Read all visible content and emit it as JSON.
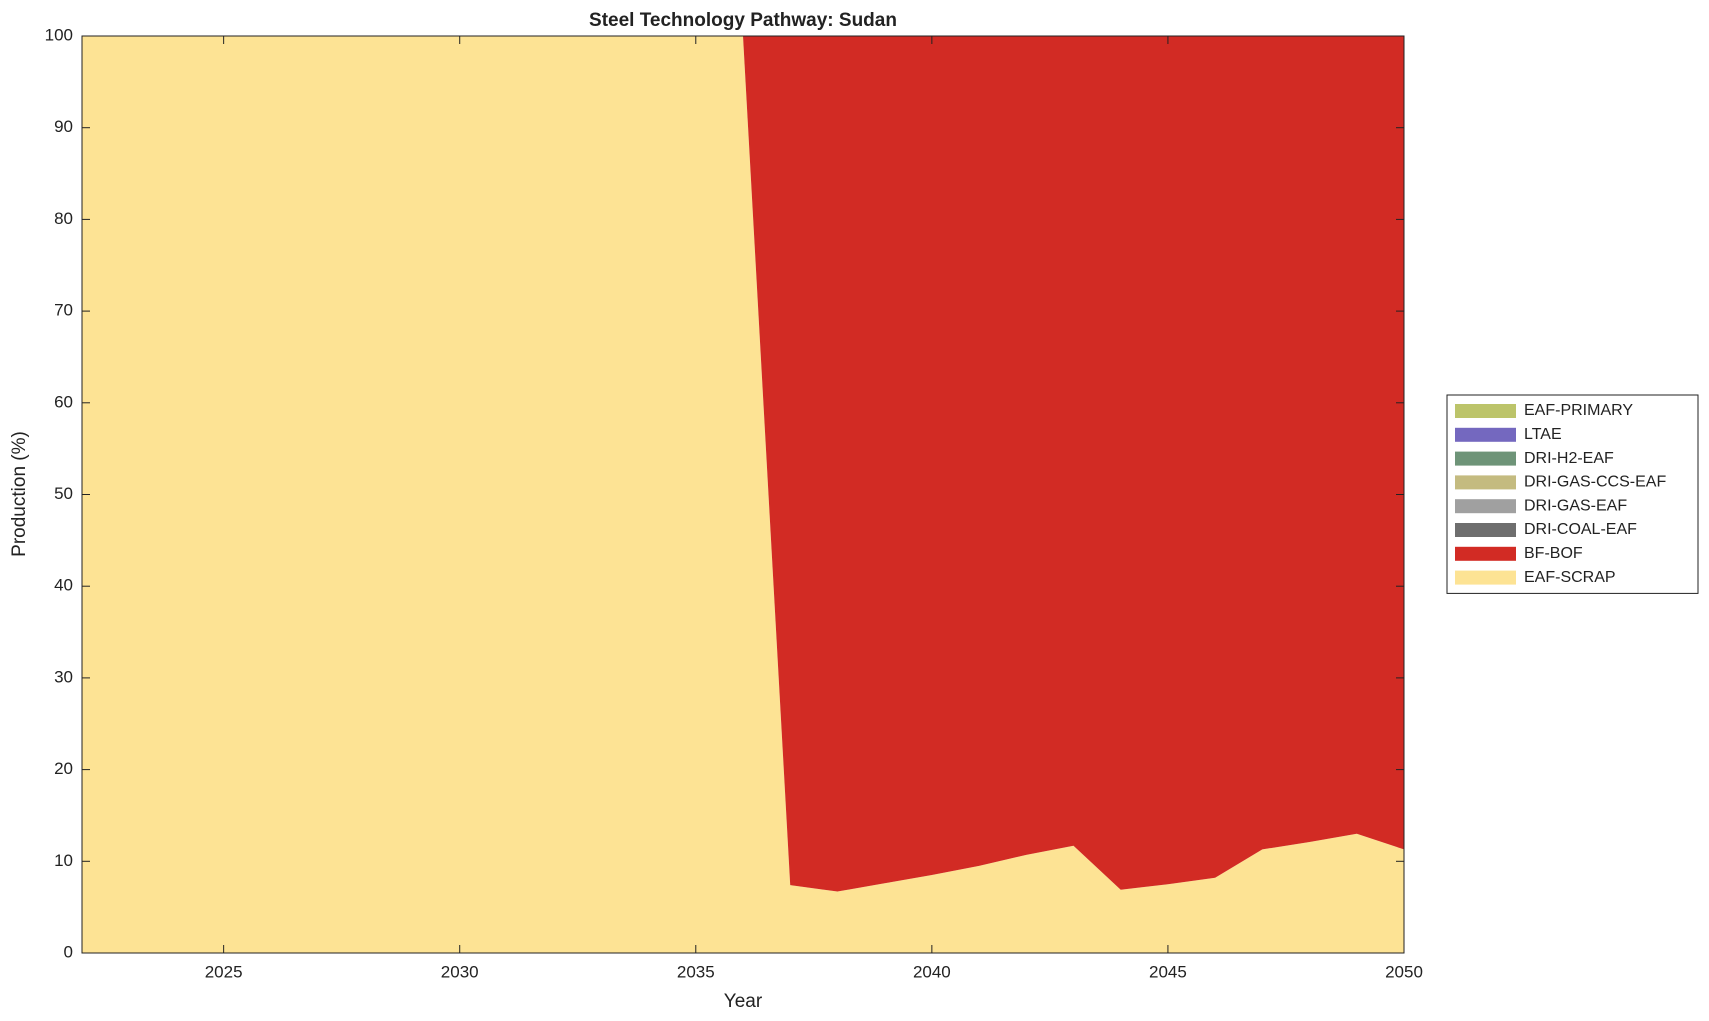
{
  "chart_data": {
    "type": "stacked_area",
    "title": "Steel Technology Pathway: Sudan",
    "x_label": "Year",
    "y_label": "Production (%)",
    "x": [
      2022,
      2023,
      2024,
      2025,
      2026,
      2027,
      2028,
      2029,
      2030,
      2031,
      2032,
      2033,
      2034,
      2035,
      2036,
      2037,
      2038,
      2039,
      2040,
      2041,
      2042,
      2043,
      2044,
      2045,
      2046,
      2047,
      2048,
      2049,
      2050
    ],
    "series": [
      {
        "name": "EAF-PRIMARY",
        "color": "#bcc46a",
        "values": [
          0,
          0,
          0,
          0,
          0,
          0,
          0,
          0,
          0,
          0,
          0,
          0,
          0,
          0,
          0,
          0,
          0,
          0,
          0,
          0,
          0,
          0,
          0,
          0,
          0,
          0,
          0,
          0,
          0
        ]
      },
      {
        "name": "LTAE",
        "color": "#7468bf",
        "values": [
          0,
          0,
          0,
          0,
          0,
          0,
          0,
          0,
          0,
          0,
          0,
          0,
          0,
          0,
          0,
          0,
          0,
          0,
          0,
          0,
          0,
          0,
          0,
          0,
          0,
          0,
          0,
          0,
          0
        ]
      },
      {
        "name": "DRI-H2-EAF",
        "color": "#6e9478",
        "values": [
          0,
          0,
          0,
          0,
          0,
          0,
          0,
          0,
          0,
          0,
          0,
          0,
          0,
          0,
          0,
          0,
          0,
          0,
          0,
          0,
          0,
          0,
          0,
          0,
          0,
          0,
          0,
          0,
          0
        ]
      },
      {
        "name": "DRI-GAS-CCS-EAF",
        "color": "#c4bb80",
        "values": [
          0,
          0,
          0,
          0,
          0,
          0,
          0,
          0,
          0,
          0,
          0,
          0,
          0,
          0,
          0,
          0,
          0,
          0,
          0,
          0,
          0,
          0,
          0,
          0,
          0,
          0,
          0,
          0,
          0
        ]
      },
      {
        "name": "DRI-GAS-EAF",
        "color": "#a0a0a0",
        "values": [
          0,
          0,
          0,
          0,
          0,
          0,
          0,
          0,
          0,
          0,
          0,
          0,
          0,
          0,
          0,
          0,
          0,
          0,
          0,
          0,
          0,
          0,
          0,
          0,
          0,
          0,
          0,
          0,
          0
        ]
      },
      {
        "name": "DRI-COAL-EAF",
        "color": "#6e6e6e",
        "values": [
          0,
          0,
          0,
          0,
          0,
          0,
          0,
          0,
          0,
          0,
          0,
          0,
          0,
          0,
          0,
          0,
          0,
          0,
          0,
          0,
          0,
          0,
          0,
          0,
          0,
          0,
          0,
          0,
          0
        ]
      },
      {
        "name": "BF-BOF",
        "color": "#d22b24",
        "values": [
          0,
          0,
          0,
          0,
          0,
          0,
          0,
          0,
          0,
          0,
          0,
          0,
          0,
          0,
          0,
          92.6,
          93.3,
          92.4,
          91.5,
          90.5,
          89.3,
          88.3,
          93.1,
          92.5,
          91.8,
          88.7,
          87.9,
          87.0,
          88.7
        ]
      },
      {
        "name": "EAF-SCRAP",
        "color": "#fde394",
        "values": [
          100,
          100,
          100,
          100,
          100,
          100,
          100,
          100,
          100,
          100,
          100,
          100,
          100,
          100,
          100,
          7.4,
          6.7,
          7.6,
          8.5,
          9.5,
          10.7,
          11.7,
          6.9,
          7.5,
          8.2,
          11.3,
          12.1,
          13.0,
          11.3
        ]
      }
    ],
    "xlim": [
      2022,
      2050
    ],
    "xticks": [
      2025,
      2030,
      2035,
      2040,
      2045,
      2050
    ],
    "ylim": [
      0,
      100
    ],
    "yticks": [
      0,
      10,
      20,
      30,
      40,
      50,
      60,
      70,
      80,
      90,
      100
    ],
    "legend": "right"
  }
}
